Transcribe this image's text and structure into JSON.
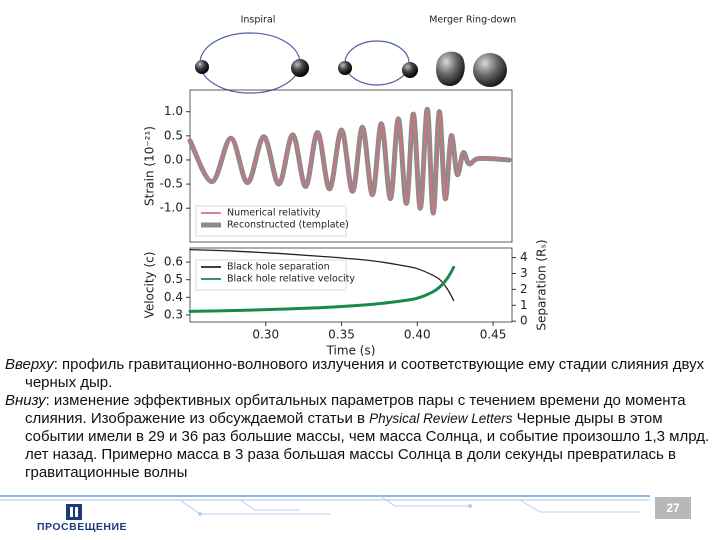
{
  "chart_data": [
    {
      "type": "line",
      "annotations": [
        "Inspiral",
        "Merger",
        "Ring-down"
      ],
      "ylabel": "Strain (10⁻²¹)",
      "x": [
        0.25,
        0.2645,
        0.277,
        0.288,
        0.2987,
        0.3086,
        0.3178,
        0.3263,
        0.3342,
        0.3421,
        0.35,
        0.3573,
        0.3638,
        0.3704,
        0.3763,
        0.3823,
        0.3875,
        0.3928,
        0.3974,
        0.402,
        0.4066,
        0.4105,
        0.4145,
        0.4184,
        0.4224,
        0.4263,
        0.4303,
        0.4342,
        0.4408,
        0.4605
      ],
      "series": [
        {
          "name": "Reconstructed (template)",
          "color": "#8c8c8c",
          "values": [
            0.4,
            -0.45,
            0.45,
            -0.47,
            0.48,
            -0.5,
            0.52,
            -0.55,
            0.57,
            -0.6,
            0.62,
            -0.65,
            0.68,
            -0.72,
            0.75,
            -0.8,
            0.85,
            -0.9,
            0.95,
            -1.0,
            1.05,
            -1.1,
            1.0,
            -0.8,
            0.5,
            -0.3,
            0.15,
            -0.08,
            0.03,
            0
          ]
        },
        {
          "name": "Numerical relativity",
          "color": "#d9707a",
          "values": [
            0.4,
            -0.45,
            0.45,
            -0.47,
            0.48,
            -0.5,
            0.52,
            -0.55,
            0.57,
            -0.6,
            0.62,
            -0.65,
            0.68,
            -0.72,
            0.75,
            -0.8,
            0.85,
            -0.9,
            0.95,
            -1.0,
            1.05,
            -1.1,
            1.0,
            -0.8,
            0.5,
            -0.3,
            0.15,
            -0.08,
            0.03,
            0
          ]
        }
      ],
      "xlim": [
        0.25,
        0.4625
      ],
      "ylim": [
        -1.7,
        1.45
      ],
      "yticks": [
        {
          "value": 1,
          "label": "1.0"
        },
        0.5,
        {
          "value": 0,
          "label": "0.0"
        },
        -0.5,
        {
          "value": -1,
          "label": "-1.0"
        }
      ],
      "legend": "lower left"
    },
    {
      "type": "line",
      "xlabel": "Time (s)",
      "ylabel": "Velocity (c)",
      "y2label": "Separation (Rₛ)",
      "x": [
        0.25,
        0.28,
        0.31,
        0.34,
        0.37,
        0.39,
        0.4,
        0.41,
        0.415,
        0.42,
        0.424
      ],
      "series": [
        {
          "name": "Black hole separation",
          "color": "#222222",
          "axis": "y2",
          "values": [
            4.5,
            4.4,
            4.25,
            4.05,
            3.8,
            3.5,
            3.3,
            2.9,
            2.6,
            2.0,
            1.3
          ]
        },
        {
          "name": "Black hole relative velocity",
          "color": "#1a8a4a",
          "values": [
            0.32,
            0.325,
            0.333,
            0.343,
            0.36,
            0.38,
            0.395,
            0.43,
            0.46,
            0.51,
            0.57
          ]
        }
      ],
      "xlim": [
        0.25,
        0.4625
      ],
      "xticks": [
        {
          "value": 0.3,
          "label": "0.30"
        },
        0.35,
        {
          "value": 0.4,
          "label": "0.40"
        },
        0.45
      ],
      "ylim": [
        0.26,
        0.68
      ],
      "yticks": [
        0.3,
        0.4,
        0.5,
        0.6
      ],
      "y2lim": [
        -0.05,
        4.6
      ],
      "y2ticks": [
        0,
        1,
        2,
        3,
        4
      ],
      "legend": "upper left"
    }
  ],
  "caption": {
    "top": {
      "lead": "Вверху",
      "text": ": профиль гравитационно-волнового излучения и соответствующие ему стадии слияния двух черных дыр."
    },
    "bottom": {
      "lead": "Внизу",
      "text1": ": изменение эффективных орбитальных параметров пары с течением времени до момента слияния. Изображение из обсуждаемой статьи в ",
      "journal": "Physical Review Letters",
      "text2": " Черные дыры в этом событии имели в 29 и 36 раз большие массы, чем масса Солнца, и событие произошло 1,3 млрд. лет назад. Примерно масса в 3 раза большая массы Солнца в доли секунды превратилась в гравитационные волны"
    }
  },
  "footer": {
    "page": "27",
    "logo": "ПРОСВЕЩЕНИЕ"
  }
}
